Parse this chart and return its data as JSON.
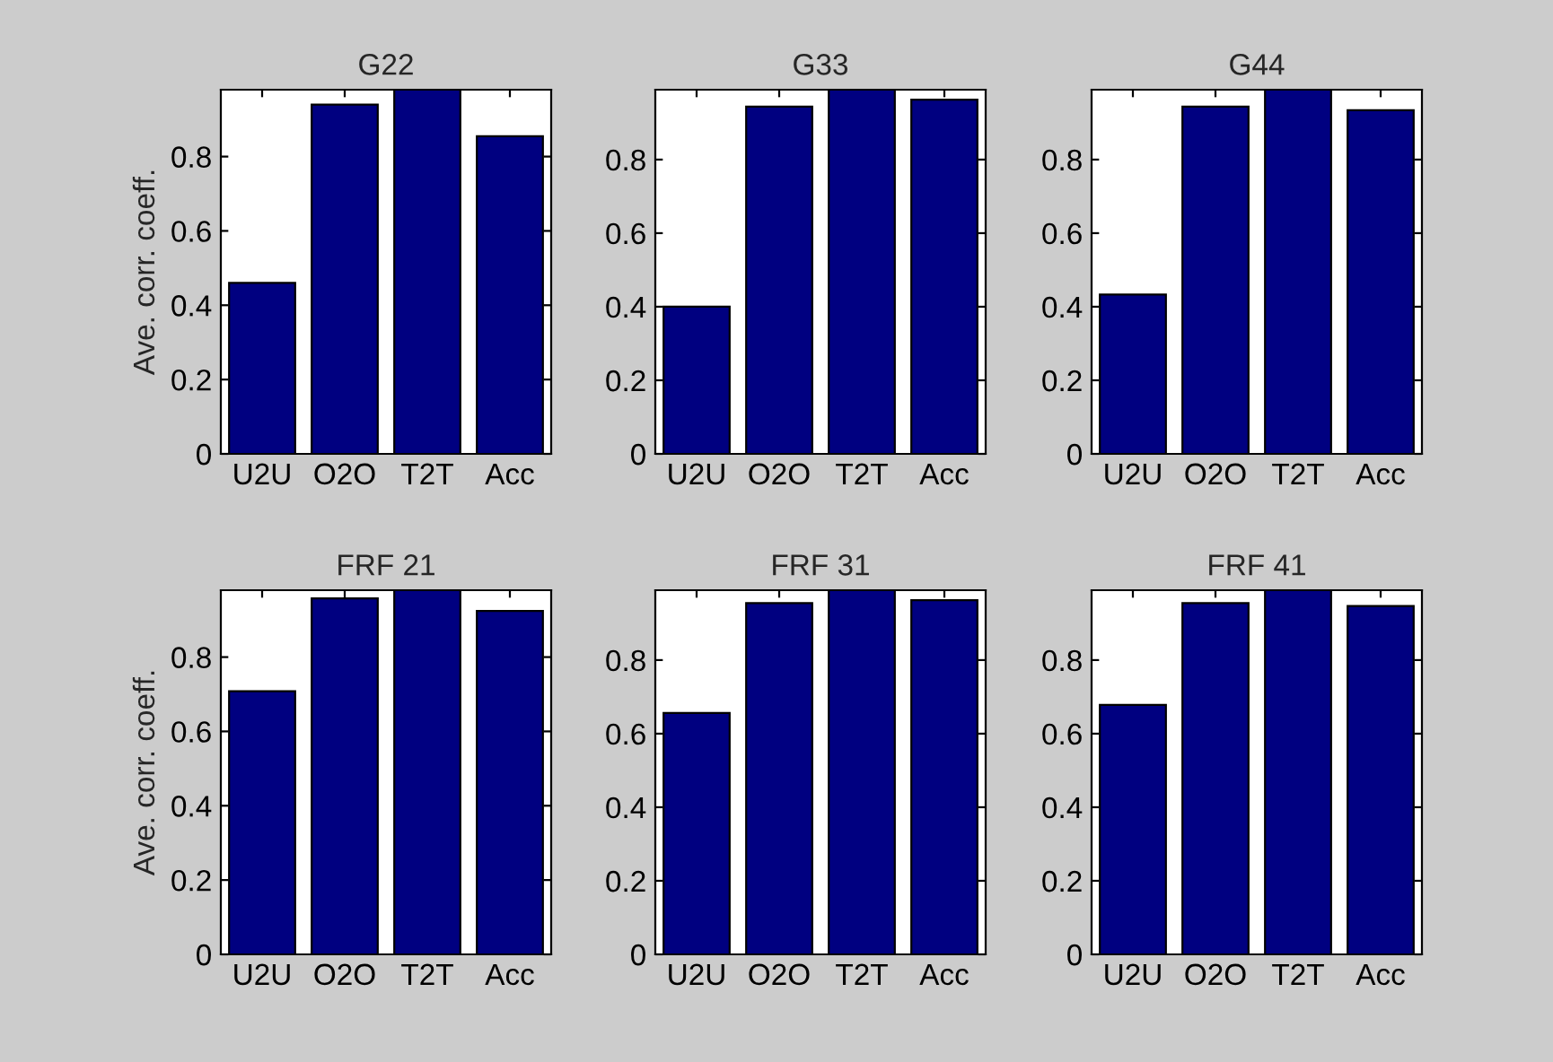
{
  "chart_data": [
    {
      "type": "bar",
      "title": "G22",
      "ylabel": "Ave. corr. coeff.",
      "categories": [
        "U2U",
        "O2O",
        "T2T",
        "Acc"
      ],
      "values": [
        0.46,
        0.94,
        0.98,
        0.855
      ],
      "color": "#000080",
      "ylim": [
        0,
        0.98
      ],
      "yticks": [
        0,
        0.2,
        0.4,
        0.6,
        0.8
      ],
      "grid": false
    },
    {
      "type": "bar",
      "title": "G33",
      "categories": [
        "U2U",
        "O2O",
        "T2T",
        "Acc"
      ],
      "values": [
        0.4,
        0.944,
        0.99,
        0.963
      ],
      "color": "#000080",
      "ylim": [
        0,
        0.99
      ],
      "yticks": [
        0,
        0.2,
        0.4,
        0.6,
        0.8
      ],
      "grid": false
    },
    {
      "type": "bar",
      "title": "G44",
      "categories": [
        "U2U",
        "O2O",
        "T2T",
        "Acc"
      ],
      "values": [
        0.433,
        0.944,
        0.99,
        0.934
      ],
      "color": "#000080",
      "ylim": [
        0,
        0.99
      ],
      "yticks": [
        0,
        0.2,
        0.4,
        0.6,
        0.8
      ],
      "grid": false
    },
    {
      "type": "bar",
      "title": "FRF 21",
      "ylabel": "Ave. corr. coeff.",
      "categories": [
        "U2U",
        "O2O",
        "T2T",
        "Acc"
      ],
      "values": [
        0.708,
        0.958,
        0.98,
        0.924
      ],
      "color": "#000080",
      "ylim": [
        0,
        0.98
      ],
      "yticks": [
        0,
        0.2,
        0.4,
        0.6,
        0.8
      ],
      "grid": false
    },
    {
      "type": "bar",
      "title": "FRF 31",
      "categories": [
        "U2U",
        "O2O",
        "T2T",
        "Acc"
      ],
      "values": [
        0.656,
        0.955,
        0.99,
        0.963
      ],
      "color": "#000080",
      "ylim": [
        0,
        0.99
      ],
      "yticks": [
        0,
        0.2,
        0.4,
        0.6,
        0.8
      ],
      "grid": false
    },
    {
      "type": "bar",
      "title": "FRF 41",
      "categories": [
        "U2U",
        "O2O",
        "T2T",
        "Acc"
      ],
      "values": [
        0.678,
        0.955,
        0.99,
        0.947
      ],
      "color": "#000080",
      "ylim": [
        0,
        0.99
      ],
      "yticks": [
        0,
        0.2,
        0.4,
        0.6,
        0.8
      ],
      "grid": false
    }
  ]
}
